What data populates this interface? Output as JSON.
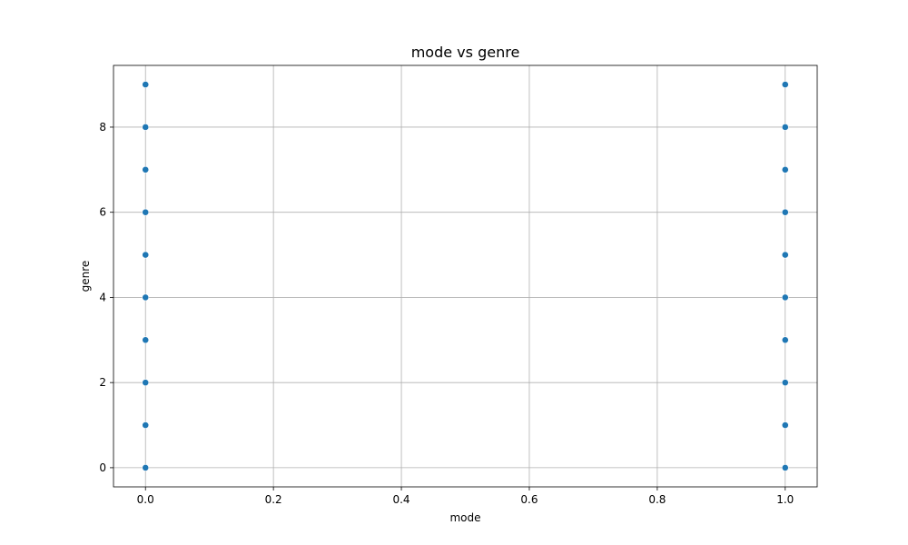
{
  "chart_data": {
    "type": "scatter",
    "title": "mode vs genre",
    "xlabel": "mode",
    "ylabel": "genre",
    "xlim": [
      -0.05,
      1.05
    ],
    "ylim": [
      -0.45,
      9.45
    ],
    "xticks": [
      0.0,
      0.2,
      0.4,
      0.6,
      0.8,
      1.0
    ],
    "xtick_labels": [
      "0.0",
      "0.2",
      "0.4",
      "0.6",
      "0.8",
      "1.0"
    ],
    "yticks": [
      0,
      2,
      4,
      6,
      8
    ],
    "ytick_labels": [
      "0",
      "2",
      "4",
      "6",
      "8"
    ],
    "grid": true,
    "marker_color": "#1f77b4",
    "points": [
      {
        "x": 0,
        "y": 0
      },
      {
        "x": 0,
        "y": 1
      },
      {
        "x": 0,
        "y": 2
      },
      {
        "x": 0,
        "y": 3
      },
      {
        "x": 0,
        "y": 4
      },
      {
        "x": 0,
        "y": 5
      },
      {
        "x": 0,
        "y": 6
      },
      {
        "x": 0,
        "y": 7
      },
      {
        "x": 0,
        "y": 8
      },
      {
        "x": 0,
        "y": 9
      },
      {
        "x": 1,
        "y": 0
      },
      {
        "x": 1,
        "y": 1
      },
      {
        "x": 1,
        "y": 2
      },
      {
        "x": 1,
        "y": 3
      },
      {
        "x": 1,
        "y": 4
      },
      {
        "x": 1,
        "y": 5
      },
      {
        "x": 1,
        "y": 6
      },
      {
        "x": 1,
        "y": 7
      },
      {
        "x": 1,
        "y": 8
      },
      {
        "x": 1,
        "y": 9
      }
    ]
  }
}
